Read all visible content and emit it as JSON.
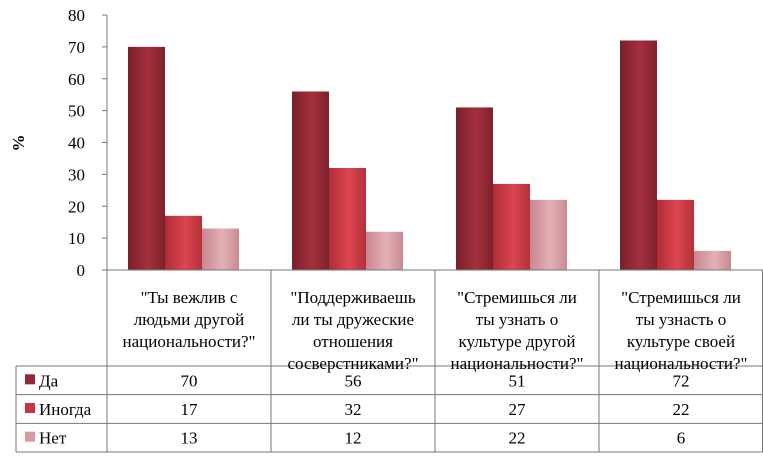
{
  "chart_data": {
    "type": "bar",
    "ylabel": "%",
    "ylim": [
      0,
      80
    ],
    "yticks": [
      0,
      10,
      20,
      30,
      40,
      50,
      60,
      70,
      80
    ],
    "grid": false,
    "legend": "data-table",
    "categories": [
      [
        "\"Ты вежлив с",
        "людьми другой",
        "национальности?\""
      ],
      [
        "\"Поддерживаешь",
        "ли ты дружеские",
        "отношения",
        "сосверстниками?\""
      ],
      [
        "\"Стремишься ли",
        "ты узнать о",
        "культуре другой",
        "национальности?\""
      ],
      [
        "\"Стремишься ли",
        "ты узнасть о",
        "культуре своей",
        "национальности?\""
      ]
    ],
    "series": [
      {
        "name": "Да",
        "values": [
          70,
          56,
          51,
          72
        ],
        "color": "#8f2a35"
      },
      {
        "name": "Иногда",
        "values": [
          17,
          32,
          27,
          22
        ],
        "color": "#c4373f"
      },
      {
        "name": "Нет",
        "values": [
          13,
          12,
          22,
          6
        ],
        "color": "#d69aa0"
      }
    ]
  }
}
